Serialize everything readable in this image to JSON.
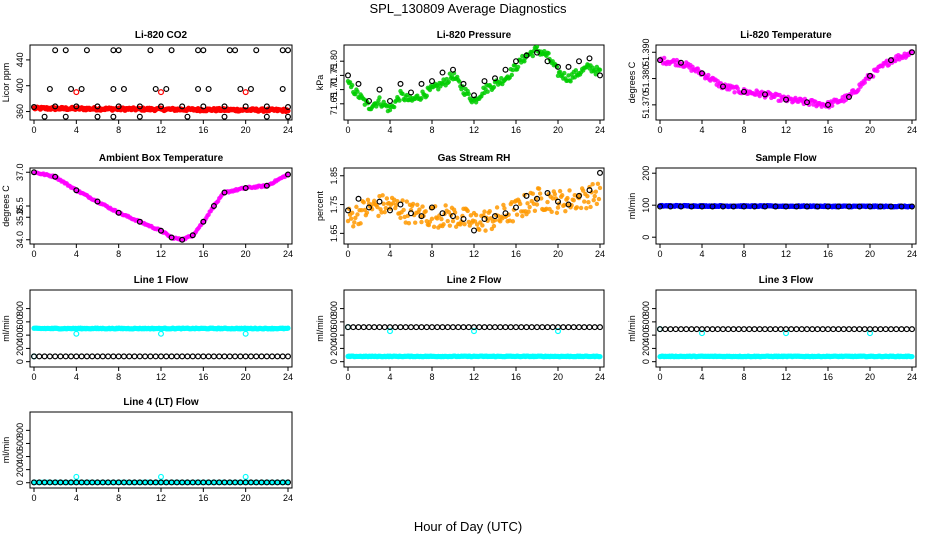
{
  "figure": {
    "title": "SPL_130809  Average Diagnostics",
    "xlabel": "Hour of Day (UTC)"
  },
  "chart_data": [
    {
      "type": "scatter",
      "title": "Li-820 CO2",
      "ylabel": "Licor ppm",
      "xlim": [
        0,
        24
      ],
      "ylim": [
        350,
        460
      ],
      "xticks": [
        "0",
        "4",
        "8",
        "12",
        "16",
        "20",
        "24"
      ],
      "yticks": [
        {
          "v": 360,
          "t": "360"
        },
        {
          "v": 400,
          "t": "400"
        },
        {
          "v": 440,
          "t": "440"
        }
      ],
      "series": [
        {
          "color": "#ff0000",
          "marker": "dot",
          "x": "dense",
          "y_start": 365,
          "y_end": 362,
          "noise": 2
        },
        {
          "color": "#ff0000",
          "marker": "ring",
          "x": [
            4,
            12,
            20
          ],
          "y": [
            390,
            390,
            390
          ]
        },
        {
          "color": "#000000",
          "marker": "ring",
          "x": [
            0,
            2,
            4,
            6,
            8,
            10,
            12,
            14,
            16,
            18,
            20,
            22,
            24
          ],
          "y": [
            367,
            368,
            368,
            368,
            368,
            368,
            368,
            368,
            368,
            368,
            368,
            368,
            367
          ]
        },
        {
          "color": "#000000",
          "marker": "ring",
          "x": [
            1.5,
            3.5,
            4.5,
            7.5,
            8.5,
            11.5,
            12.5,
            15.5,
            16.5,
            19.5,
            20.5,
            23.5
          ],
          "y": [
            395,
            395,
            395,
            395,
            395,
            395,
            395,
            395,
            395,
            395,
            395,
            395
          ]
        },
        {
          "color": "#000000",
          "marker": "ring",
          "x": [
            2,
            3,
            5,
            7.5,
            8,
            11,
            13,
            15.5,
            16,
            18.5,
            19,
            21,
            23.5,
            24
          ],
          "y": [
            455,
            455,
            455,
            455,
            455,
            455,
            455,
            455,
            455,
            455,
            455,
            455,
            455,
            455
          ]
        },
        {
          "color": "#000000",
          "marker": "ring",
          "x": [
            1,
            3,
            6,
            7.5,
            10,
            14.5,
            18,
            22,
            24
          ],
          "y": [
            352,
            352,
            352,
            352,
            352,
            352,
            352,
            352,
            352
          ]
        }
      ]
    },
    {
      "type": "scatter",
      "title": "Li-820 Pressure",
      "ylabel": "kPa",
      "xlim": [
        0,
        24
      ],
      "ylim": [
        71.6,
        71.85
      ],
      "xticks": [
        "0",
        "4",
        "8",
        "12",
        "16",
        "20",
        "24"
      ],
      "yticks": [
        {
          "v": 71.65,
          "t": "71.65"
        },
        {
          "v": 71.7,
          "t": "71.70"
        },
        {
          "v": 71.75,
          "t": "71.75"
        },
        {
          "v": 71.8,
          "t": "71.80"
        }
      ],
      "series": [
        {
          "color": "#00cc00",
          "marker": "dot",
          "x": [
            0,
            1,
            2,
            3,
            4,
            5,
            6,
            7,
            8,
            9,
            10,
            11,
            12,
            13,
            14,
            15,
            16,
            17,
            18,
            19,
            20,
            21,
            22,
            23,
            24
          ],
          "y": [
            71.72,
            71.68,
            71.64,
            71.66,
            71.63,
            71.68,
            71.66,
            71.68,
            71.7,
            71.72,
            71.75,
            71.7,
            71.66,
            71.7,
            71.72,
            71.74,
            71.78,
            71.82,
            71.84,
            71.82,
            71.76,
            71.74,
            71.76,
            71.78,
            71.76
          ],
          "noise": 0.015
        },
        {
          "color": "#000000",
          "marker": "ring",
          "x": [
            0,
            1,
            2,
            3,
            4,
            5,
            6,
            7,
            8,
            9,
            10,
            11,
            12,
            13,
            14,
            15,
            16,
            17,
            18,
            19,
            20,
            21,
            22,
            23,
            24
          ],
          "y": [
            71.75,
            71.72,
            71.66,
            71.7,
            71.66,
            71.72,
            71.69,
            71.72,
            71.73,
            71.76,
            71.77,
            71.72,
            71.68,
            71.73,
            71.74,
            71.77,
            71.8,
            71.82,
            71.83,
            71.8,
            71.78,
            71.78,
            71.8,
            71.81,
            71.75
          ]
        }
      ]
    },
    {
      "type": "scatter",
      "title": "Li-820 Temperature",
      "ylabel": "degrees C",
      "xlim": [
        0,
        24
      ],
      "ylim": [
        51.365,
        51.392
      ],
      "xticks": [
        "0",
        "4",
        "8",
        "12",
        "16",
        "20",
        "24"
      ],
      "yticks": [
        {
          "v": 51.37,
          "t": "51.370"
        },
        {
          "v": 51.38,
          "t": "51.380"
        },
        {
          "v": 51.39,
          "t": "51.390"
        }
      ],
      "series": [
        {
          "color": "#ff00ff",
          "marker": "dot",
          "x": [
            0,
            2,
            4,
            6,
            8,
            10,
            12,
            14,
            16,
            18,
            20,
            22,
            24
          ],
          "y": [
            51.387,
            51.386,
            51.382,
            51.377,
            51.375,
            51.374,
            51.372,
            51.371,
            51.37,
            51.373,
            51.381,
            51.387,
            51.39
          ],
          "noise": 0.0012
        },
        {
          "color": "#000000",
          "marker": "ring",
          "x": [
            0,
            2,
            4,
            6,
            8,
            10,
            12,
            14,
            16,
            18,
            20,
            22,
            24
          ],
          "y": [
            51.387,
            51.386,
            51.382,
            51.377,
            51.375,
            51.374,
            51.372,
            51.371,
            51.37,
            51.373,
            51.381,
            51.387,
            51.39
          ]
        }
      ]
    },
    {
      "type": "scatter",
      "title": "Ambient Box Temperature",
      "ylabel": "degrees C",
      "xlim": [
        0,
        24
      ],
      "ylim": [
        33.9,
        37.1
      ],
      "xticks": [
        "0",
        "4",
        "8",
        "12",
        "16",
        "20",
        "24"
      ],
      "yticks": [
        {
          "v": 34.0,
          "t": "34.0"
        },
        {
          "v": 35.0,
          "t": "35.0"
        },
        {
          "v": 35.5,
          "t": "35.5"
        },
        {
          "v": 37.0,
          "t": "37.0"
        }
      ],
      "series": [
        {
          "color": "#ff00ff",
          "marker": "dot",
          "x": [
            0,
            2,
            4,
            6,
            8,
            10,
            12,
            13,
            14,
            15,
            16,
            17,
            18,
            20,
            22,
            24
          ],
          "y": [
            37.0,
            36.8,
            36.2,
            35.7,
            35.2,
            34.8,
            34.4,
            34.1,
            34.0,
            34.2,
            34.8,
            35.5,
            36.1,
            36.3,
            36.4,
            36.9
          ],
          "noise": 0.04
        },
        {
          "color": "#000000",
          "marker": "ring",
          "x": [
            0,
            2,
            4,
            6,
            8,
            10,
            12,
            13,
            14,
            15,
            16,
            17,
            18,
            20,
            22,
            24
          ],
          "y": [
            37.0,
            36.8,
            36.2,
            35.7,
            35.2,
            34.8,
            34.4,
            34.1,
            34.0,
            34.2,
            34.8,
            35.5,
            36.1,
            36.3,
            36.4,
            36.9
          ]
        }
      ]
    },
    {
      "type": "scatter",
      "title": "Gas Stream RH",
      "ylabel": "percent",
      "xlim": [
        0,
        24
      ],
      "ylim": [
        1.62,
        1.87
      ],
      "xticks": [
        "0",
        "4",
        "8",
        "12",
        "16",
        "20",
        "24"
      ],
      "yticks": [
        {
          "v": 1.65,
          "t": "1.65"
        },
        {
          "v": 1.75,
          "t": "1.75"
        },
        {
          "v": 1.85,
          "t": "1.85"
        }
      ],
      "series": [
        {
          "color": "#ff9900",
          "marker": "dot",
          "x": [
            0,
            2,
            4,
            6,
            8,
            10,
            12,
            14,
            16,
            18,
            20,
            22,
            24
          ],
          "y": [
            1.7,
            1.74,
            1.75,
            1.72,
            1.71,
            1.71,
            1.69,
            1.7,
            1.73,
            1.77,
            1.76,
            1.77,
            1.79
          ],
          "noise": 0.04
        },
        {
          "color": "#000000",
          "marker": "ring",
          "x": [
            0,
            1,
            2,
            3,
            4,
            5,
            6,
            7,
            8,
            9,
            10,
            11,
            12,
            13,
            14,
            15,
            16,
            17,
            18,
            19,
            20,
            21,
            22,
            23,
            24
          ],
          "y": [
            1.73,
            1.77,
            1.74,
            1.76,
            1.73,
            1.75,
            1.72,
            1.71,
            1.74,
            1.72,
            1.71,
            1.7,
            1.66,
            1.7,
            1.71,
            1.72,
            1.74,
            1.78,
            1.77,
            1.79,
            1.76,
            1.75,
            1.78,
            1.8,
            1.86
          ]
        }
      ]
    },
    {
      "type": "scatter",
      "title": "Sample Flow",
      "ylabel": "ml/min",
      "xlim": [
        0,
        24
      ],
      "ylim": [
        -15,
        210
      ],
      "xticks": [
        "0",
        "4",
        "8",
        "12",
        "16",
        "20",
        "24"
      ],
      "yticks": [
        {
          "v": 0,
          "t": "0"
        },
        {
          "v": 100,
          "t": "100"
        },
        {
          "v": 200,
          "t": "200"
        }
      ],
      "series": [
        {
          "color": "#0000ff",
          "marker": "dot",
          "x": "dense",
          "y_start": 98,
          "y_end": 96,
          "noise": 1.5
        },
        {
          "color": "#000000",
          "marker": "ring",
          "x": "hourly",
          "y": 96
        }
      ]
    },
    {
      "type": "scatter",
      "title": "Line 1 Flow",
      "ylabel": "ml/min",
      "xlim": [
        0,
        24
      ],
      "ylim": [
        -50,
        1050
      ],
      "xticks": [
        "0",
        "4",
        "8",
        "12",
        "16",
        "20",
        "24"
      ],
      "yticks": [
        {
          "v": 0,
          "t": "0"
        },
        {
          "v": 200,
          "t": "200"
        },
        {
          "v": 400,
          "t": "400"
        },
        {
          "v": 600,
          "t": "600"
        },
        {
          "v": 800,
          "t": "800"
        }
      ],
      "series": [
        {
          "color": "#00ffff",
          "marker": "dot",
          "x": "dense",
          "y_start": 500,
          "y_end": 500,
          "noise": 6
        },
        {
          "color": "#00ffff",
          "marker": "ring",
          "x": [
            0,
            4,
            12,
            20
          ],
          "y": [
            80,
            420,
            420,
            420
          ]
        },
        {
          "color": "#000000",
          "marker": "ring",
          "x": "half-hourly",
          "y": 80
        }
      ]
    },
    {
      "type": "scatter",
      "title": "Line 2 Flow",
      "ylabel": "ml/min",
      "xlim": [
        0,
        24
      ],
      "ylim": [
        -50,
        1050
      ],
      "xticks": [
        "0",
        "4",
        "8",
        "12",
        "16",
        "20",
        "24"
      ],
      "yticks": [
        {
          "v": 0,
          "t": "0"
        },
        {
          "v": 200,
          "t": "200"
        },
        {
          "v": 400,
          "t": "400"
        },
        {
          "v": 600,
          "t": "600"
        },
        {
          "v": 800,
          "t": "800"
        }
      ],
      "series": [
        {
          "color": "#00ffff",
          "marker": "dot",
          "x": "dense",
          "y_start": 80,
          "y_end": 80,
          "noise": 5
        },
        {
          "color": "#00ffff",
          "marker": "ring",
          "x": [
            0,
            4,
            12,
            20
          ],
          "y": [
            520,
            460,
            460,
            460
          ]
        },
        {
          "color": "#000000",
          "marker": "ring",
          "x": "half-hourly",
          "y": 520
        }
      ]
    },
    {
      "type": "scatter",
      "title": "Line 3 Flow",
      "ylabel": "ml/min",
      "xlim": [
        0,
        24
      ],
      "ylim": [
        -50,
        1050
      ],
      "xticks": [
        "0",
        "4",
        "8",
        "12",
        "16",
        "20",
        "24"
      ],
      "yticks": [
        {
          "v": 0,
          "t": "0"
        },
        {
          "v": 200,
          "t": "200"
        },
        {
          "v": 400,
          "t": "400"
        },
        {
          "v": 600,
          "t": "600"
        },
        {
          "v": 800,
          "t": "800"
        }
      ],
      "series": [
        {
          "color": "#00ffff",
          "marker": "dot",
          "x": "dense",
          "y_start": 80,
          "y_end": 80,
          "noise": 5
        },
        {
          "color": "#00ffff",
          "marker": "ring",
          "x": [
            0,
            4,
            12,
            20
          ],
          "y": [
            490,
            430,
            430,
            430
          ]
        },
        {
          "color": "#000000",
          "marker": "ring",
          "x": "half-hourly",
          "y": 490
        }
      ]
    },
    {
      "type": "scatter",
      "title": "Line 4 (LT) Flow",
      "ylabel": "ml/min",
      "xlim": [
        0,
        24
      ],
      "ylim": [
        -50,
        1050
      ],
      "xticks": [
        "0",
        "4",
        "8",
        "12",
        "16",
        "20",
        "24"
      ],
      "yticks": [
        {
          "v": 0,
          "t": "0"
        },
        {
          "v": 200,
          "t": "200"
        },
        {
          "v": 400,
          "t": "400"
        },
        {
          "v": 600,
          "t": "600"
        },
        {
          "v": 800,
          "t": "800"
        }
      ],
      "series": [
        {
          "color": "#00ffff",
          "marker": "dot",
          "x": "dense",
          "y_start": 5,
          "y_end": 5,
          "noise": 2
        },
        {
          "color": "#00ffff",
          "marker": "ring",
          "x": [
            0,
            4,
            12,
            20
          ],
          "y": [
            5,
            90,
            90,
            90
          ]
        },
        {
          "color": "#000000",
          "marker": "ring",
          "x": "half-hourly",
          "y": 5
        }
      ]
    }
  ]
}
